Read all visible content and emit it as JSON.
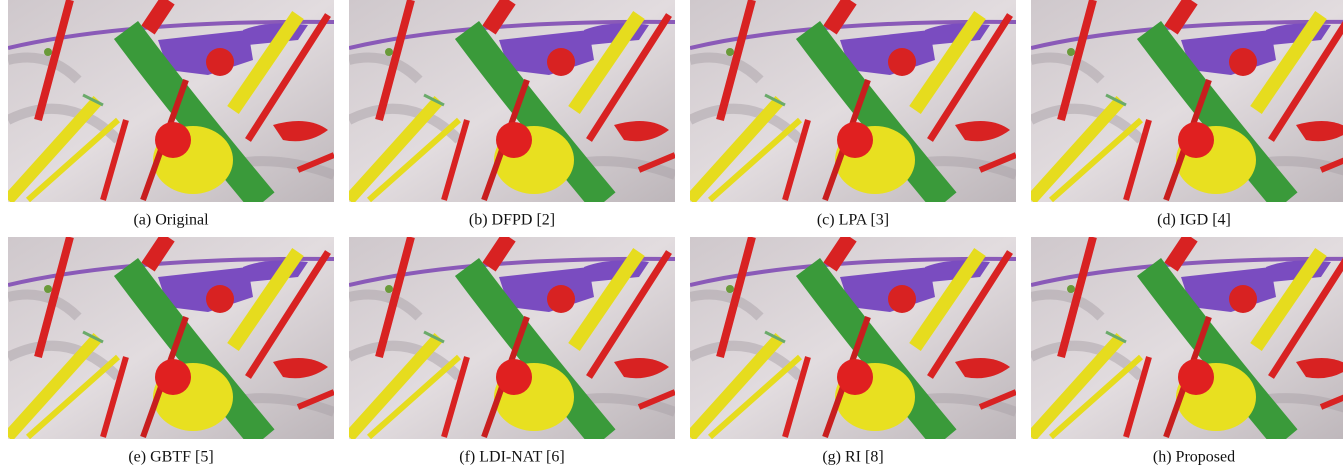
{
  "figure": {
    "panels": [
      {
        "caption": "(a) Original"
      },
      {
        "caption": "(b) DFPD [2]"
      },
      {
        "caption": "(c) LPA [3]"
      },
      {
        "caption": "(d) IGD [4]"
      },
      {
        "caption": "(e) GBTF [5]"
      },
      {
        "caption": "(f) LDI-NAT [6]"
      },
      {
        "caption": "(g) RI [8]"
      },
      {
        "caption": "(h) Proposed"
      }
    ]
  }
}
